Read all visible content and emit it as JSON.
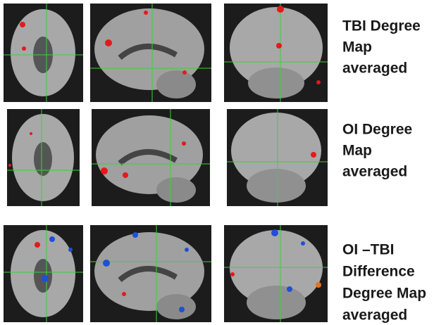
{
  "rows": [
    {
      "label_lines": [
        "TBI Degree",
        "Map",
        "averaged"
      ]
    },
    {
      "label_lines": [
        "OI Degree",
        "Map",
        "averaged"
      ]
    },
    {
      "label_lines": [
        "OI –TBI",
        "Difference",
        "Degree Map",
        "averaged"
      ]
    }
  ]
}
